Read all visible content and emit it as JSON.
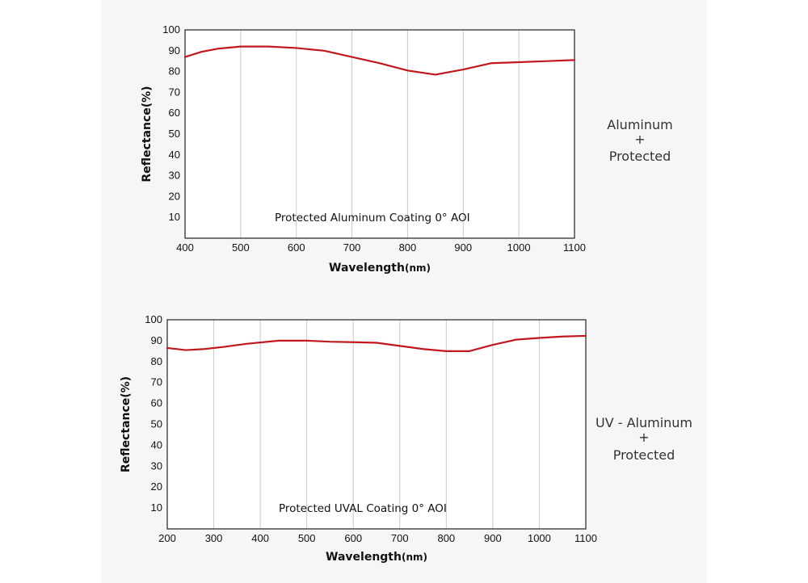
{
  "chart_data": [
    {
      "type": "line",
      "annotation": "Protected Aluminum Coating 0° AOI",
      "xlabel": "Wavelength",
      "xlabel_unit": "(nm)",
      "ylabel": "Reflectance(%)",
      "xlim": [
        400,
        1100
      ],
      "ylim": [
        0,
        100
      ],
      "x_ticks": [
        400,
        500,
        600,
        700,
        800,
        900,
        1000,
        1100
      ],
      "y_ticks": [
        10,
        20,
        30,
        40,
        50,
        60,
        70,
        80,
        90,
        100
      ],
      "grid": "vertical",
      "side_label": [
        "Aluminum",
        "+",
        "Protected"
      ],
      "series": [
        {
          "color": "#c0181c",
          "points": [
            [
              400,
              87
            ],
            [
              430,
              89.5
            ],
            [
              460,
              91
            ],
            [
              500,
              92
            ],
            [
              550,
              92
            ],
            [
              600,
              91.3
            ],
            [
              650,
              90
            ],
            [
              700,
              87
            ],
            [
              750,
              84
            ],
            [
              800,
              80.5
            ],
            [
              850,
              78.5
            ],
            [
              900,
              81
            ],
            [
              950,
              84
            ],
            [
              1000,
              84.5
            ],
            [
              1050,
              85
            ],
            [
              1100,
              85.5
            ]
          ]
        }
      ]
    },
    {
      "type": "line",
      "annotation": "Protected UVAL Coating 0° AOI",
      "xlabel": "Wavelength",
      "xlabel_unit": "(nm)",
      "ylabel": "Reflectance(%)",
      "xlim": [
        200,
        1100
      ],
      "ylim": [
        0,
        100
      ],
      "x_ticks": [
        200,
        300,
        400,
        500,
        600,
        700,
        800,
        900,
        1000,
        1100
      ],
      "y_ticks": [
        10,
        20,
        30,
        40,
        50,
        60,
        70,
        80,
        90,
        100
      ],
      "grid": "vertical",
      "side_label": [
        "UV - Aluminum",
        "+",
        "Protected"
      ],
      "series": [
        {
          "color": "#c0181c",
          "points": [
            [
              200,
              86.5
            ],
            [
              240,
              85.5
            ],
            [
              280,
              86
            ],
            [
              320,
              87
            ],
            [
              370,
              88.5
            ],
            [
              440,
              90
            ],
            [
              500,
              90
            ],
            [
              550,
              89.5
            ],
            [
              600,
              89.3
            ],
            [
              650,
              89
            ],
            [
              700,
              87.5
            ],
            [
              750,
              86
            ],
            [
              800,
              85
            ],
            [
              850,
              85
            ],
            [
              900,
              88
            ],
            [
              950,
              90.5
            ],
            [
              1000,
              91.3
            ],
            [
              1050,
              92
            ],
            [
              1100,
              92.3
            ]
          ]
        }
      ]
    }
  ]
}
